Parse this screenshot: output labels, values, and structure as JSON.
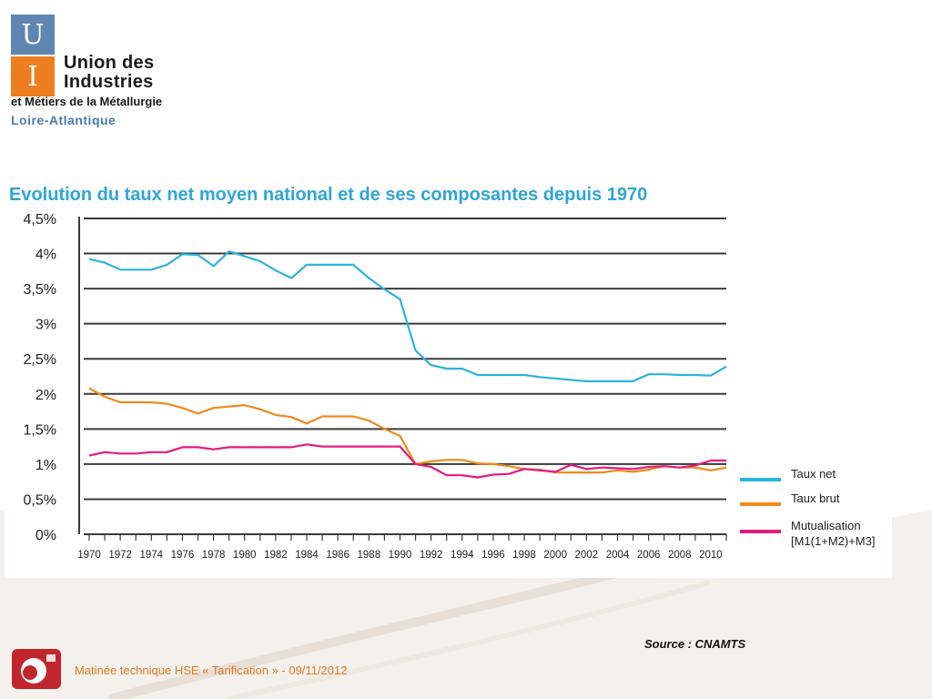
{
  "logo": {
    "box_top": "U",
    "box_bottom": "I",
    "name_line1": "Union des",
    "name_line2": "Industries",
    "subtitle": "et Métiers de la Métallurgie",
    "region": "Loire-Atlantique",
    "colors": {
      "top_box": "#5f86b3",
      "bottom_box": "#ee7d1f",
      "region": "#4a7ab5"
    }
  },
  "chart_data": {
    "type": "line",
    "title": "Evolution du taux net moyen national et de ses composantes depuis 1970",
    "title_color": "#2fa5d8",
    "xlabel": "",
    "ylabel": "",
    "ylim": [
      0,
      4.5
    ],
    "xlim": [
      1970,
      2011
    ],
    "y_ticks": [
      {
        "value": 0,
        "label": "0%"
      },
      {
        "value": 0.5,
        "label": "0,5%"
      },
      {
        "value": 1,
        "label": "1%"
      },
      {
        "value": 1.5,
        "label": "1,5%"
      },
      {
        "value": 2,
        "label": "2%"
      },
      {
        "value": 2.5,
        "label": "2,5%"
      },
      {
        "value": 3,
        "label": "3%"
      },
      {
        "value": 3.5,
        "label": "3,5%"
      },
      {
        "value": 4,
        "label": "4%"
      },
      {
        "value": 4.5,
        "label": "4,5%"
      }
    ],
    "x_tick_labels": [
      "1970",
      "1972",
      "1974",
      "1976",
      "1978",
      "1980",
      "1982",
      "1984",
      "1986",
      "1988",
      "1990",
      "1992",
      "1994",
      "1996",
      "1998",
      "2000",
      "2002",
      "2004",
      "2006",
      "2008",
      "2010"
    ],
    "grid": true,
    "legend_position": "right",
    "x": [
      1970,
      1971,
      1972,
      1973,
      1974,
      1975,
      1976,
      1977,
      1978,
      1979,
      1980,
      1981,
      1982,
      1983,
      1984,
      1985,
      1986,
      1987,
      1988,
      1989,
      1990,
      1991,
      1992,
      1993,
      1994,
      1995,
      1996,
      1997,
      1998,
      1999,
      2000,
      2001,
      2002,
      2003,
      2004,
      2005,
      2006,
      2007,
      2008,
      2009,
      2010,
      2011
    ],
    "series": [
      {
        "name": "Taux net",
        "color": "#2bb3dd",
        "values": [
          3.92,
          3.87,
          3.77,
          3.77,
          3.77,
          3.84,
          3.99,
          3.98,
          3.82,
          4.03,
          3.96,
          3.89,
          3.76,
          3.65,
          3.84,
          3.84,
          3.84,
          3.84,
          3.65,
          3.49,
          3.35,
          2.62,
          2.41,
          2.36,
          2.36,
          2.27,
          2.27,
          2.27,
          2.27,
          2.24,
          2.22,
          2.2,
          2.18,
          2.18,
          2.18,
          2.18,
          2.28,
          2.28,
          2.27,
          2.27,
          2.26,
          2.39
        ]
      },
      {
        "name": "Taux brut",
        "color": "#ee8a1c",
        "values": [
          2.08,
          1.96,
          1.88,
          1.88,
          1.88,
          1.86,
          1.8,
          1.72,
          1.8,
          1.82,
          1.84,
          1.78,
          1.7,
          1.67,
          1.58,
          1.68,
          1.68,
          1.68,
          1.62,
          1.5,
          1.4,
          1.0,
          1.04,
          1.06,
          1.06,
          1.01,
          1.0,
          0.97,
          0.93,
          0.92,
          0.88,
          0.88,
          0.88,
          0.88,
          0.91,
          0.89,
          0.92,
          0.97,
          0.95,
          0.95,
          0.91,
          0.95
        ]
      },
      {
        "name": "Mutualisation\n[M1(1+M2)+M3]",
        "color": "#e31b7f",
        "values": [
          1.12,
          1.17,
          1.15,
          1.15,
          1.17,
          1.17,
          1.24,
          1.24,
          1.21,
          1.24,
          1.24,
          1.24,
          1.24,
          1.24,
          1.28,
          1.25,
          1.25,
          1.25,
          1.25,
          1.25,
          1.25,
          1.0,
          0.96,
          0.84,
          0.84,
          0.81,
          0.85,
          0.86,
          0.93,
          0.91,
          0.89,
          0.99,
          0.93,
          0.95,
          0.94,
          0.93,
          0.96,
          0.97,
          0.95,
          0.98,
          1.05,
          1.05
        ]
      }
    ]
  },
  "source": "Source : CNAMTS",
  "footer": {
    "text": "Matinée technique HSE « Tarification » - 09/11/2012",
    "text_color": "#e07b1f",
    "icon_color": "#c0262c"
  }
}
